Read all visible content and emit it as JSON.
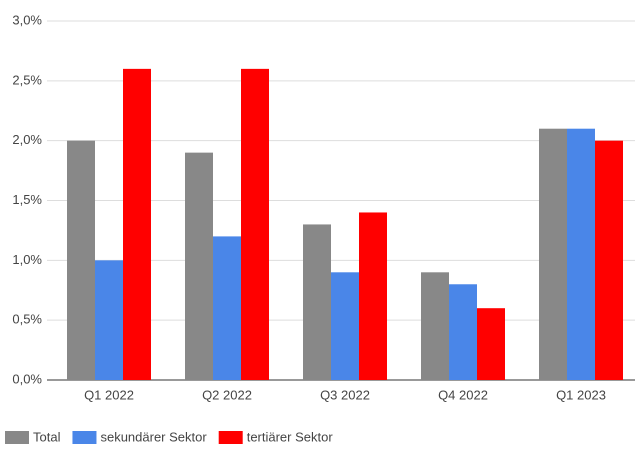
{
  "chart_data": {
    "type": "bar",
    "categories": [
      "Q1 2022",
      "Q2 2022",
      "Q3 2022",
      "Q4 2022",
      "Q1 2023"
    ],
    "series": [
      {
        "name": "Total",
        "color": "#888888",
        "values": [
          2.0,
          1.9,
          1.3,
          0.9,
          2.1
        ]
      },
      {
        "name": "sekundärer Sektor",
        "color": "#4a86e8",
        "values": [
          1.0,
          1.2,
          0.9,
          0.8,
          2.1
        ]
      },
      {
        "name": "tertiärer Sektor",
        "color": "#ff0000",
        "values": [
          2.6,
          2.6,
          1.4,
          0.6,
          2.0
        ]
      }
    ],
    "ylim": [
      0,
      3.0
    ],
    "yticks": [
      {
        "value": 0,
        "label": "0,0%"
      },
      {
        "value": 0.5,
        "label": "0,5%"
      },
      {
        "value": 1.0,
        "label": "1,0%"
      },
      {
        "value": 1.5,
        "label": "1,5%"
      },
      {
        "value": 2.0,
        "label": "2,0%"
      },
      {
        "value": 2.5,
        "label": "2,5%"
      },
      {
        "value": 3.0,
        "label": "3,0%"
      }
    ],
    "grid": true,
    "legend": "bottom"
  }
}
